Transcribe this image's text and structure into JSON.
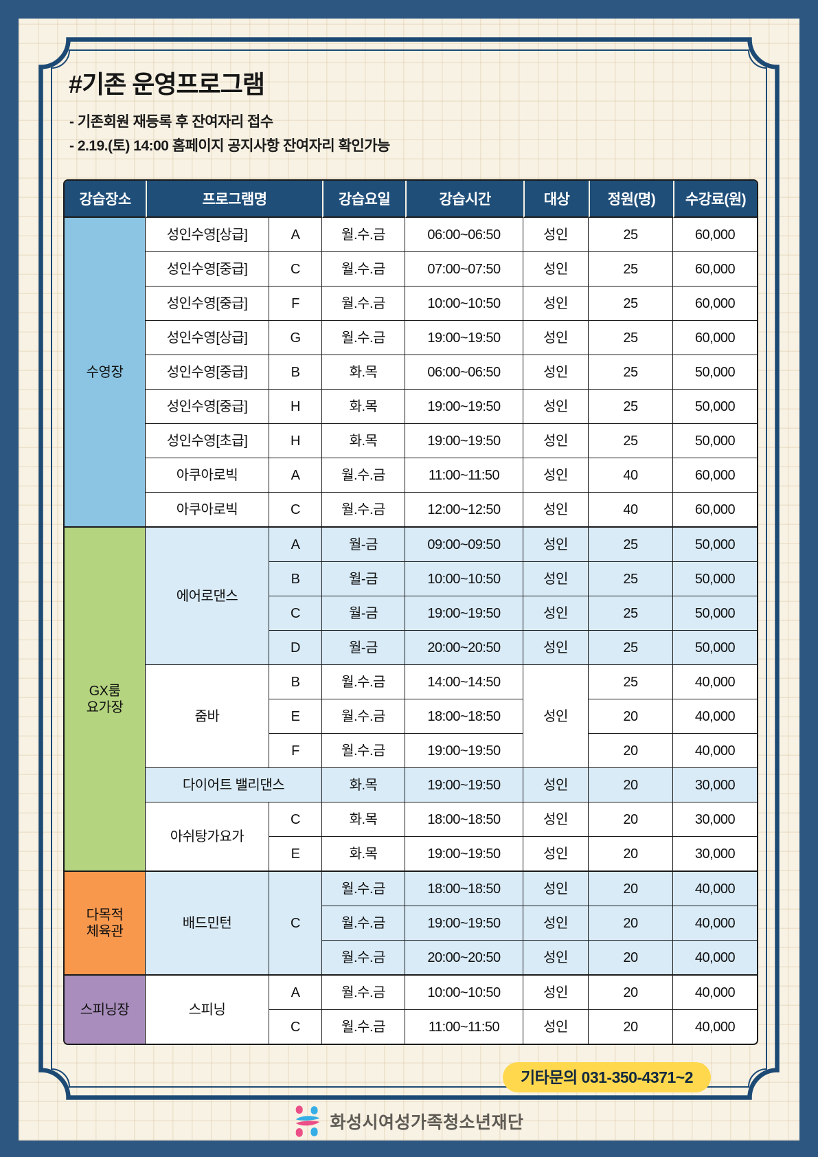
{
  "title": "#기존 운영프로그램",
  "notes": [
    "- 기존회원 재등록 후 잔여자리 접수",
    "- 2.19.(토) 14:00 홈페이지 공지사항 잔여자리 확인가능"
  ],
  "contact_badge": "기타문의 031-350-4371~2",
  "footer": {
    "org_name": "화성시여성가족청소년재단"
  },
  "colors": {
    "outer_bg": "#2d5681",
    "page_bg": "#f8f2e4",
    "frame": "#1d4a75",
    "header_bg": "#1f4e79",
    "header_text": "#ffffff",
    "pool": "#8bc5e3",
    "gx": "#b5d47f",
    "gym": "#f8984d",
    "spin": "#a98dbd",
    "row_highlight": "#d9ebf7",
    "badge_bg": "#ffd84e",
    "badge_text": "#12293f",
    "logo_pink": "#ec4f87",
    "logo_blue": "#35aee5"
  },
  "table": {
    "header": [
      {
        "label": "강습장소"
      },
      {
        "label": "프로그램명",
        "colspan": 2
      },
      {
        "label": "강습요일"
      },
      {
        "label": "강습시간"
      },
      {
        "label": "대상"
      },
      {
        "label": "정원(명)"
      },
      {
        "label": "수강료(원)"
      }
    ],
    "section_end_rows": [
      8,
      18,
      21
    ],
    "rows": [
      [
        {
          "t": "수영장",
          "rs": 9,
          "bg": "pool"
        },
        {
          "t": "성인수영[상급]"
        },
        {
          "t": "A"
        },
        {
          "t": "월.수.금"
        },
        {
          "t": "06:00~06:50"
        },
        {
          "t": "성인"
        },
        {
          "t": "25"
        },
        {
          "t": "60,000"
        }
      ],
      [
        {
          "t": "성인수영[중급]"
        },
        {
          "t": "C"
        },
        {
          "t": "월.수.금"
        },
        {
          "t": "07:00~07:50"
        },
        {
          "t": "성인"
        },
        {
          "t": "25"
        },
        {
          "t": "60,000"
        }
      ],
      [
        {
          "t": "성인수영[중급]"
        },
        {
          "t": "F"
        },
        {
          "t": "월.수.금"
        },
        {
          "t": "10:00~10:50"
        },
        {
          "t": "성인"
        },
        {
          "t": "25"
        },
        {
          "t": "60,000"
        }
      ],
      [
        {
          "t": "성인수영[상급]"
        },
        {
          "t": "G"
        },
        {
          "t": "월.수.금"
        },
        {
          "t": "19:00~19:50"
        },
        {
          "t": "성인"
        },
        {
          "t": "25"
        },
        {
          "t": "60,000"
        }
      ],
      [
        {
          "t": "성인수영[중급]"
        },
        {
          "t": "B"
        },
        {
          "t": "화.목"
        },
        {
          "t": "06:00~06:50"
        },
        {
          "t": "성인"
        },
        {
          "t": "25"
        },
        {
          "t": "50,000"
        }
      ],
      [
        {
          "t": "성인수영[중급]"
        },
        {
          "t": "H"
        },
        {
          "t": "화.목"
        },
        {
          "t": "19:00~19:50"
        },
        {
          "t": "성인"
        },
        {
          "t": "25"
        },
        {
          "t": "50,000"
        }
      ],
      [
        {
          "t": "성인수영[초급]"
        },
        {
          "t": "H"
        },
        {
          "t": "화.목"
        },
        {
          "t": "19:00~19:50"
        },
        {
          "t": "성인"
        },
        {
          "t": "25"
        },
        {
          "t": "50,000"
        }
      ],
      [
        {
          "t": "아쿠아로빅"
        },
        {
          "t": "A"
        },
        {
          "t": "월.수.금"
        },
        {
          "t": "11:00~11:50"
        },
        {
          "t": "성인"
        },
        {
          "t": "40"
        },
        {
          "t": "60,000"
        }
      ],
      [
        {
          "t": "아쿠아로빅"
        },
        {
          "t": "C"
        },
        {
          "t": "월.수.금"
        },
        {
          "t": "12:00~12:50"
        },
        {
          "t": "성인"
        },
        {
          "t": "40"
        },
        {
          "t": "60,000"
        }
      ],
      [
        {
          "t": "GX룸\n요가장",
          "rs": 10,
          "bg": "gx"
        },
        {
          "t": "에어로댄스",
          "rs": 4,
          "bg": "lb"
        },
        {
          "t": "A",
          "bg": "lb"
        },
        {
          "t": "월-금",
          "bg": "lb"
        },
        {
          "t": "09:00~09:50",
          "bg": "lb"
        },
        {
          "t": "성인",
          "bg": "lb"
        },
        {
          "t": "25",
          "bg": "lb"
        },
        {
          "t": "50,000",
          "bg": "lb"
        }
      ],
      [
        {
          "t": "B",
          "bg": "lb"
        },
        {
          "t": "월-금",
          "bg": "lb"
        },
        {
          "t": "10:00~10:50",
          "bg": "lb"
        },
        {
          "t": "성인",
          "bg": "lb"
        },
        {
          "t": "25",
          "bg": "lb"
        },
        {
          "t": "50,000",
          "bg": "lb"
        }
      ],
      [
        {
          "t": "C",
          "bg": "lb"
        },
        {
          "t": "월-금",
          "bg": "lb"
        },
        {
          "t": "19:00~19:50",
          "bg": "lb"
        },
        {
          "t": "성인",
          "bg": "lb"
        },
        {
          "t": "25",
          "bg": "lb"
        },
        {
          "t": "50,000",
          "bg": "lb"
        }
      ],
      [
        {
          "t": "D",
          "bg": "lb"
        },
        {
          "t": "월-금",
          "bg": "lb"
        },
        {
          "t": "20:00~20:50",
          "bg": "lb"
        },
        {
          "t": "성인",
          "bg": "lb"
        },
        {
          "t": "25",
          "bg": "lb"
        },
        {
          "t": "50,000",
          "bg": "lb"
        }
      ],
      [
        {
          "t": "줌바",
          "rs": 3
        },
        {
          "t": "B"
        },
        {
          "t": "월.수.금"
        },
        {
          "t": "14:00~14:50"
        },
        {
          "t": "성인",
          "rs": 3
        },
        {
          "t": "25"
        },
        {
          "t": "40,000"
        }
      ],
      [
        {
          "t": "E"
        },
        {
          "t": "월.수.금"
        },
        {
          "t": "18:00~18:50"
        },
        {
          "t": "20"
        },
        {
          "t": "40,000"
        }
      ],
      [
        {
          "t": "F"
        },
        {
          "t": "월.수.금"
        },
        {
          "t": "19:00~19:50"
        },
        {
          "t": "20"
        },
        {
          "t": "40,000"
        }
      ],
      [
        {
          "t": "다이어트 밸리댄스",
          "cs": 2,
          "bg": "lb"
        },
        {
          "t": "화.목",
          "bg": "lb"
        },
        {
          "t": "19:00~19:50",
          "bg": "lb"
        },
        {
          "t": "성인",
          "bg": "lb"
        },
        {
          "t": "20",
          "bg": "lb"
        },
        {
          "t": "30,000",
          "bg": "lb"
        }
      ],
      [
        {
          "t": "아쉬탕가요가",
          "rs": 2
        },
        {
          "t": "C"
        },
        {
          "t": "화.목"
        },
        {
          "t": "18:00~18:50"
        },
        {
          "t": "성인"
        },
        {
          "t": "20"
        },
        {
          "t": "30,000"
        }
      ],
      [
        {
          "t": "E"
        },
        {
          "t": "화.목"
        },
        {
          "t": "19:00~19:50"
        },
        {
          "t": "성인"
        },
        {
          "t": "20"
        },
        {
          "t": "30,000"
        }
      ],
      [
        {
          "t": "다목적\n체육관",
          "rs": 3,
          "bg": "gym"
        },
        {
          "t": "배드민턴",
          "rs": 3,
          "bg": "lb"
        },
        {
          "t": "C",
          "rs": 3,
          "bg": "lb"
        },
        {
          "t": "월.수.금",
          "bg": "lb"
        },
        {
          "t": "18:00~18:50",
          "bg": "lb"
        },
        {
          "t": "성인",
          "bg": "lb"
        },
        {
          "t": "20",
          "bg": "lb"
        },
        {
          "t": "40,000",
          "bg": "lb"
        }
      ],
      [
        {
          "t": "월.수.금",
          "bg": "lb"
        },
        {
          "t": "19:00~19:50",
          "bg": "lb"
        },
        {
          "t": "성인",
          "bg": "lb"
        },
        {
          "t": "20",
          "bg": "lb"
        },
        {
          "t": "40,000",
          "bg": "lb"
        }
      ],
      [
        {
          "t": "월.수.금",
          "bg": "lb"
        },
        {
          "t": "20:00~20:50",
          "bg": "lb"
        },
        {
          "t": "성인",
          "bg": "lb"
        },
        {
          "t": "20",
          "bg": "lb"
        },
        {
          "t": "40,000",
          "bg": "lb"
        }
      ],
      [
        {
          "t": "스피닝장",
          "rs": 2,
          "bg": "spin"
        },
        {
          "t": "스피닝",
          "rs": 2
        },
        {
          "t": "A"
        },
        {
          "t": "월.수.금"
        },
        {
          "t": "10:00~10:50"
        },
        {
          "t": "성인"
        },
        {
          "t": "20"
        },
        {
          "t": "40,000"
        }
      ],
      [
        {
          "t": "C"
        },
        {
          "t": "월.수.금"
        },
        {
          "t": "11:00~11:50"
        },
        {
          "t": "성인"
        },
        {
          "t": "20"
        },
        {
          "t": "40,000"
        }
      ]
    ]
  }
}
